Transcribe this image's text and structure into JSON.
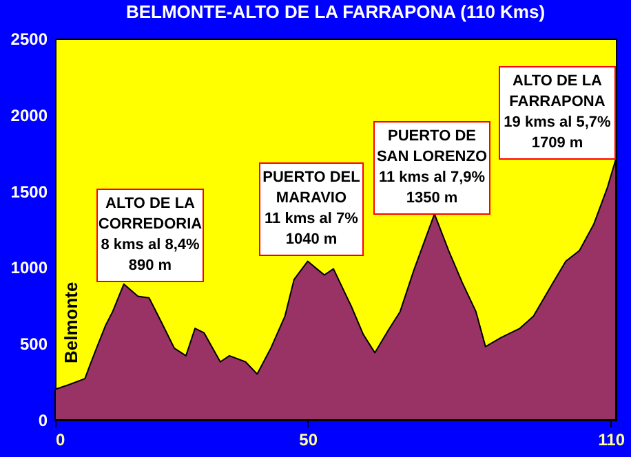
{
  "chart_data": {
    "type": "area",
    "title": "BELMONTE-ALTO DE LA FARRAPONA (110 Kms)",
    "x": [
      0,
      2.7,
      5.9,
      6.8,
      8.2,
      10,
      11.4,
      13.6,
      16.4,
      18.6,
      20.9,
      23.6,
      25.9,
      27.7,
      29.5,
      32.7,
      34.5,
      37.7,
      40,
      42.7,
      45.5,
      47.3,
      50,
      51.8,
      53.3,
      55.1,
      57.4,
      58.7,
      61,
      63.3,
      66,
      68.3,
      71,
      75.1,
      77.9,
      80.6,
      83.3,
      85.2,
      88.3,
      92,
      94.7,
      98.4,
      101.1,
      103.8,
      106.6,
      109.3,
      111
    ],
    "series": [
      {
        "color": "#993366",
        "values": [
          200,
          230,
          270,
          350,
          470,
          620,
          710,
          890,
          810,
          800,
          650,
          470,
          420,
          600,
          570,
          380,
          420,
          380,
          300,
          470,
          680,
          920,
          1040,
          990,
          950,
          990,
          830,
          740,
          560,
          440,
          590,
          710,
          980,
          1350,
          1110,
          900,
          710,
          480,
          540,
          600,
          680,
          890,
          1040,
          1110,
          1280,
          1520,
          1709
        ]
      }
    ],
    "xlim": [
      0,
      111
    ],
    "ylim": [
      0,
      2500
    ],
    "xticks": [
      0,
      50,
      110
    ],
    "yticks": [
      0,
      500,
      1000,
      1500,
      2000,
      2500
    ],
    "annotations": [
      "Belmonte",
      "ALTO DE LA\nCORREDORIA\n8 kms al 8,4%\n890 m",
      "PUERTO DEL\nMARAVIO\n11 kms al 7%\n1040 m",
      "PUERTO DE\nSAN LORENZO\n11 kms al 7,9%\n1350 m",
      "ALTO DE LA\nFARRAPONA\n19 kms al 5,7%\n1709 m"
    ]
  }
}
